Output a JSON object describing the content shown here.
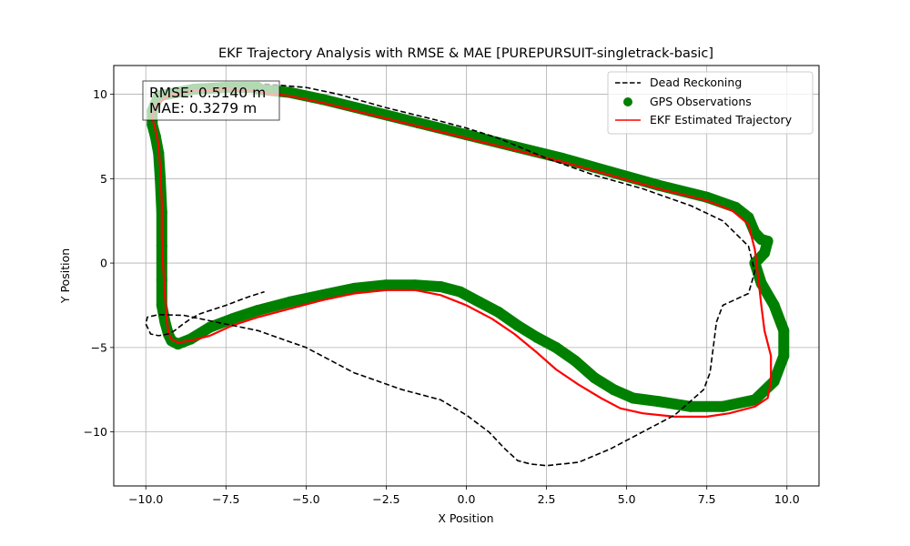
{
  "chart_data": {
    "type": "line",
    "title": "EKF Trajectory Analysis with RMSE & MAE [PUREPURSUIT-singletrack-basic]",
    "xlabel": "X Position",
    "ylabel": "Y Position",
    "xlim": [
      -11.0,
      11.0
    ],
    "ylim": [
      -13.2,
      11.7
    ],
    "x_ticks": [
      -10.0,
      -7.5,
      -5.0,
      -2.5,
      0.0,
      2.5,
      5.0,
      7.5,
      10.0
    ],
    "x_tick_labels": [
      "−10.0",
      "−7.5",
      "−5.0",
      "−2.5",
      "0.0",
      "2.5",
      "5.0",
      "7.5",
      "10.0"
    ],
    "y_ticks": [
      -10,
      -5,
      0,
      5,
      10
    ],
    "y_tick_labels": [
      "−10",
      "−5",
      "0",
      "5",
      "10"
    ],
    "grid": true,
    "legend_position": "top-right",
    "annotation": [
      "RMSE: 0.5140 m",
      "MAE: 0.3279 m"
    ],
    "colors": {
      "dead_reckoning": "#000000",
      "gps": "#008000",
      "ekf": "#ff0000",
      "grid": "#b0b0b0"
    },
    "series": [
      {
        "name": "Dead Reckoning",
        "style": "dashed",
        "x": [
          -6.3,
          -5.0,
          -4.0,
          -2.5,
          -1.0,
          0.0,
          1.0,
          2.5,
          4.0,
          5.5,
          7.0,
          8.0,
          8.8,
          9.0,
          8.8,
          8.0,
          7.8,
          7.7,
          7.6,
          7.4,
          6.5,
          5.5,
          4.5,
          3.5,
          2.5,
          2.0,
          1.6,
          1.2,
          0.7,
          0.0,
          -0.8,
          -2.0,
          -3.5,
          -5.0,
          -6.5,
          -7.8,
          -8.8,
          -9.6,
          -9.95,
          -10.0,
          -9.85,
          -9.6,
          -9.3,
          -9.1,
          -8.9,
          -8.6,
          -8.3,
          -7.5,
          -6.8,
          -6.3
        ],
        "y": [
          10.6,
          10.4,
          10.0,
          9.2,
          8.5,
          8.0,
          7.4,
          6.2,
          5.2,
          4.4,
          3.4,
          2.5,
          1.0,
          -0.5,
          -1.8,
          -2.5,
          -3.5,
          -5.0,
          -6.5,
          -7.5,
          -9.0,
          -10.0,
          -11.0,
          -11.8,
          -12.0,
          -11.9,
          -11.7,
          -11.0,
          -10.0,
          -9.0,
          -8.1,
          -7.5,
          -6.5,
          -5.0,
          -4.0,
          -3.5,
          -3.1,
          -3.05,
          -3.2,
          -3.6,
          -4.2,
          -4.3,
          -4.2,
          -4.0,
          -3.7,
          -3.3,
          -3.0,
          -2.5,
          -2.0,
          -1.7
        ],
        "note": "approximate samples"
      },
      {
        "name": "GPS Observations",
        "style": "markers",
        "x": [
          -6.5,
          -5.5,
          -4.5,
          -3.0,
          -1.5,
          0.0,
          1.5,
          3.0,
          4.5,
          6.0,
          7.5,
          8.4,
          8.8,
          9.0,
          9.2,
          9.4,
          9.3,
          9.0,
          9.2,
          9.6,
          9.9,
          9.9,
          9.6,
          9.0,
          8.0,
          7.0,
          6.0,
          5.2,
          4.6,
          4.0,
          3.4,
          2.8,
          2.2,
          1.6,
          1.0,
          0.4,
          -0.2,
          -0.8,
          -1.6,
          -2.5,
          -3.5,
          -4.5,
          -5.5,
          -6.5,
          -7.3,
          -8.0,
          -8.6,
          -9.0,
          -9.2,
          -9.3,
          -9.4,
          -9.5,
          -9.5,
          -9.5,
          -9.5,
          -9.55,
          -9.6,
          -9.7,
          -9.8,
          -9.8,
          -9.6,
          -8.5,
          -7.5,
          -6.5
        ],
        "y": [
          10.3,
          10.1,
          9.7,
          9.0,
          8.3,
          7.6,
          6.9,
          6.2,
          5.4,
          4.6,
          3.9,
          3.3,
          2.7,
          1.8,
          1.4,
          1.3,
          0.6,
          0.0,
          -1.2,
          -2.5,
          -4.0,
          -5.5,
          -7.0,
          -8.1,
          -8.5,
          -8.5,
          -8.2,
          -8.0,
          -7.5,
          -6.8,
          -5.8,
          -5.0,
          -4.4,
          -3.7,
          -2.9,
          -2.3,
          -1.7,
          -1.4,
          -1.3,
          -1.3,
          -1.5,
          -1.9,
          -2.3,
          -2.8,
          -3.3,
          -3.8,
          -4.5,
          -4.8,
          -4.6,
          -4.2,
          -3.5,
          -2.5,
          -1.0,
          1.0,
          3.0,
          5.0,
          6.5,
          7.5,
          8.2,
          9.0,
          9.9,
          10.3,
          10.4,
          10.4
        ],
        "note": "approximate samples"
      },
      {
        "name": "EKF Estimated Trajectory",
        "style": "solid",
        "x": [
          -6.5,
          -5.5,
          -4.5,
          -3.0,
          -1.5,
          0.0,
          1.5,
          3.0,
          4.5,
          6.0,
          7.5,
          8.3,
          8.8,
          9.0,
          9.1,
          9.2,
          9.3,
          9.5,
          9.5,
          9.4,
          9.0,
          8.2,
          7.5,
          6.5,
          5.5,
          4.8,
          4.2,
          3.5,
          2.8,
          2.2,
          1.5,
          0.8,
          0.0,
          -0.8,
          -1.6,
          -2.5,
          -3.5,
          -4.5,
          -5.5,
          -6.5,
          -7.3,
          -8.0,
          -8.6,
          -9.0,
          -9.2,
          -9.3,
          -9.35,
          -9.4,
          -9.45,
          -9.5,
          -9.5,
          -9.55,
          -9.6,
          -9.7,
          -9.8,
          -9.7,
          -9.3,
          -8.5,
          -7.5,
          -6.5
        ],
        "y": [
          10.1,
          9.9,
          9.5,
          8.8,
          8.1,
          7.4,
          6.7,
          6.0,
          5.2,
          4.4,
          3.7,
          3.1,
          2.3,
          0.8,
          -0.8,
          -2.5,
          -4.0,
          -5.5,
          -7.0,
          -8.0,
          -8.5,
          -8.9,
          -9.1,
          -9.1,
          -8.9,
          -8.6,
          -8.0,
          -7.2,
          -6.3,
          -5.3,
          -4.2,
          -3.3,
          -2.5,
          -1.9,
          -1.6,
          -1.6,
          -1.8,
          -2.2,
          -2.7,
          -3.2,
          -3.7,
          -4.3,
          -4.6,
          -4.7,
          -4.5,
          -4.1,
          -3.2,
          -2.0,
          -0.5,
          1.5,
          3.5,
          5.5,
          7.0,
          7.9,
          8.6,
          9.3,
          9.9,
          10.2,
          10.3,
          10.2
        ],
        "note": "approximate samples"
      }
    ]
  }
}
